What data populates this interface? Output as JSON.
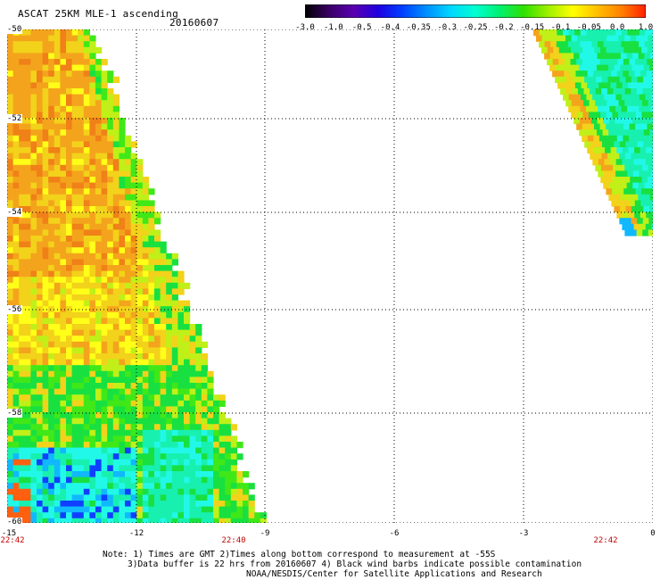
{
  "header": {
    "title": "ASCAT 25KM MLE-1 ascending",
    "date": "20160607"
  },
  "colorbar": {
    "labels": [
      "-3.0",
      "-1.0",
      "-0.5",
      "-0.4",
      "-0.35",
      "-0.3",
      "-0.25",
      "-0.2",
      "-0.15",
      "-0.1",
      "-0.05",
      "0.0",
      "1.0"
    ],
    "colors": [
      "#000000",
      "#3a0066",
      "#5a00b0",
      "#2000e0",
      "#0040ff",
      "#0090ff",
      "#00d8ff",
      "#00ffd0",
      "#00f070",
      "#30e000",
      "#a0f000",
      "#ffff00",
      "#ffc000",
      "#ff8000",
      "#ff2000"
    ]
  },
  "axes": {
    "lat_labels": [
      "-50",
      "-52",
      "-54",
      "-56",
      "-58",
      "-60"
    ],
    "lon_labels": [
      "-15",
      "-12",
      "-9",
      "-6",
      "-3",
      "0"
    ],
    "times": [
      "22:42",
      "22:40",
      "22:42"
    ]
  },
  "notes": {
    "line1": "Note: 1) Times are GMT 2)Times along bottom correspond to measurement at -55S",
    "line2": "3)Data buffer is 22 hrs from 20160607 4) Black wind barbs indicate possible contamination",
    "line3": "NOAA/NESDIS/Center for Satellite Applications and Research"
  }
}
